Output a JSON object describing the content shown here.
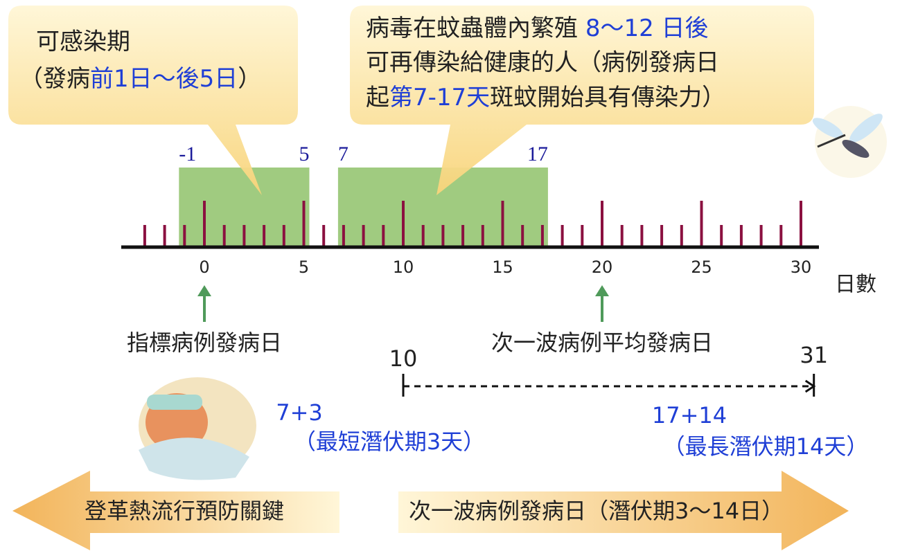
{
  "callouts": {
    "left": {
      "line1": "可感染期",
      "line2": [
        "（發病",
        "前1日～後5日",
        "）"
      ]
    },
    "right": {
      "line1": [
        "病毒在蚊蟲體內繁殖 ",
        "8～12 日後"
      ],
      "line2": "可再傳染給健康的人（病例發病日",
      "line3": [
        "起",
        "第7-17天",
        "斑蚊開始具有傳染力）"
      ]
    }
  },
  "timeline": {
    "xlim": [
      -3,
      30
    ],
    "xticks": [
      0,
      5,
      10,
      15,
      20,
      25,
      30
    ],
    "unit": "日數",
    "periods": [
      {
        "start": -1,
        "end": 5
      },
      {
        "start": 7,
        "end": 17
      }
    ],
    "markers": [
      {
        "day": 0,
        "label": "指標病例發病日"
      },
      {
        "day": 20,
        "label": "次一波病例平均發病日"
      }
    ],
    "range": {
      "start": 10,
      "end": 31
    }
  },
  "notes": {
    "short": {
      "sum": "7+3",
      "label": "（最短潛伏期3天）"
    },
    "long": {
      "sum": "17+14",
      "label": "（最長潛伏期14天）"
    }
  },
  "arrows": {
    "left": "登革熱流行預防關鍵",
    "right": "次一波病例發病日（潛伏期3～14日）"
  }
}
